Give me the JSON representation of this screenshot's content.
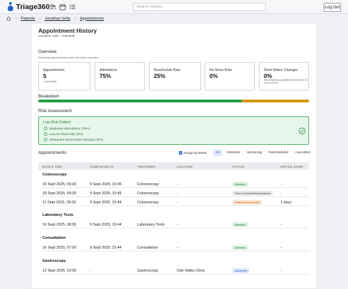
{
  "header": {
    "app_name": "Triage360",
    "search_placeholder": "Search system...",
    "logout_label": "Log Out",
    "nav_icons": [
      "people-icon",
      "calendar-icon",
      "list-icon"
    ]
  },
  "breadcrumb": {
    "items": [
      "Patients",
      "Jonathan Vella",
      "Appointments"
    ]
  },
  "page": {
    "title": "Appointment History",
    "subtitle": "Jonathan Vella · 206180M"
  },
  "overview": {
    "heading": "Overview",
    "note": "Excluding appointments where the clinic cancelled.",
    "stats": [
      {
        "label": "Appointments",
        "value": "5",
        "sub": "1 upcoming"
      },
      {
        "label": "Attendance",
        "value": "75%",
        "sub": ""
      },
      {
        "label": "Reschedule Rate",
        "value": "25%",
        "sub": ""
      },
      {
        "label": "No Show Rate",
        "value": "0%",
        "sub": ""
      },
      {
        "label": "Short Notice Changes",
        "value": "0%",
        "sub": "reschedules/cancellations less than 24 hours before"
      }
    ]
  },
  "breakdown": {
    "heading": "Breakdown",
    "segments": [
      {
        "fraction": 0.75,
        "color": "#1f9d45"
      },
      {
        "fraction": 0.25,
        "color": "#d4940f"
      }
    ]
  },
  "risk": {
    "heading": "Risk Assessment",
    "level": "Low Risk Patient",
    "items": [
      "Moderate attendance (75%)",
      "Low no-show rate (0%)",
      "Infrequent short-notice changes (0%)"
    ]
  },
  "appointments": {
    "heading": "Appointments",
    "group_by_label": "Group by Event",
    "filters": [
      "All",
      "Attended",
      "Upcoming",
      "Rescheduled",
      "Cancelled"
    ],
    "active_filter": "All",
    "columns": [
      "DATE & TIME",
      "COMPLETED AT",
      "TREATMENT",
      "LOCATION",
      "STATUS",
      "NOTICE GIVEN"
    ],
    "groups": [
      {
        "name": "Colonoscopy",
        "rows": [
          {
            "date": "19 Sept 2025, 09:30",
            "completed": "9 Sept 2025, 15:45",
            "treatment": "Colonoscopy",
            "location": "-",
            "status": "Attended",
            "status_kind": "attended",
            "notice": "-"
          },
          {
            "date": "18 Sept 2025, 09:30",
            "completed": "9 Sept 2025, 15:45",
            "treatment": "Colonoscopy",
            "location": "-",
            "status": "Clinic Cancelled/Rescheduled",
            "status_kind": "ccr",
            "notice": "-"
          },
          {
            "date": "11 Sept 2025, 09:30",
            "completed": "9 Sept 2025, 15:44",
            "treatment": "Colonoscopy",
            "location": "-",
            "status": "Patient Rescheduled",
            "status_kind": "pr",
            "notice": "1 days"
          }
        ]
      },
      {
        "name": "Laboratory Tests",
        "rows": [
          {
            "date": "16 Sept 2025, 08:00",
            "completed": "9 Sept 2025, 15:44",
            "treatment": "Laboratory Tests",
            "location": "-",
            "status": "Attended",
            "status_kind": "attended",
            "notice": "-"
          }
        ]
      },
      {
        "name": "Consultation",
        "rows": [
          {
            "date": "16 Sept 2025, 07:00",
            "completed": "9 Sept 2025, 15:44",
            "treatment": "Consultation",
            "location": "-",
            "status": "Attended",
            "status_kind": "attended",
            "notice": "-"
          }
        ]
      },
      {
        "name": "Gastroscopy",
        "rows": [
          {
            "date": "12 Sept 2025, 10:30",
            "completed": "-",
            "treatment": "Gastroscopy",
            "location": "Oak Valley Clinic",
            "status": "Upcoming",
            "status_kind": "up",
            "notice": "-"
          }
        ]
      }
    ]
  }
}
